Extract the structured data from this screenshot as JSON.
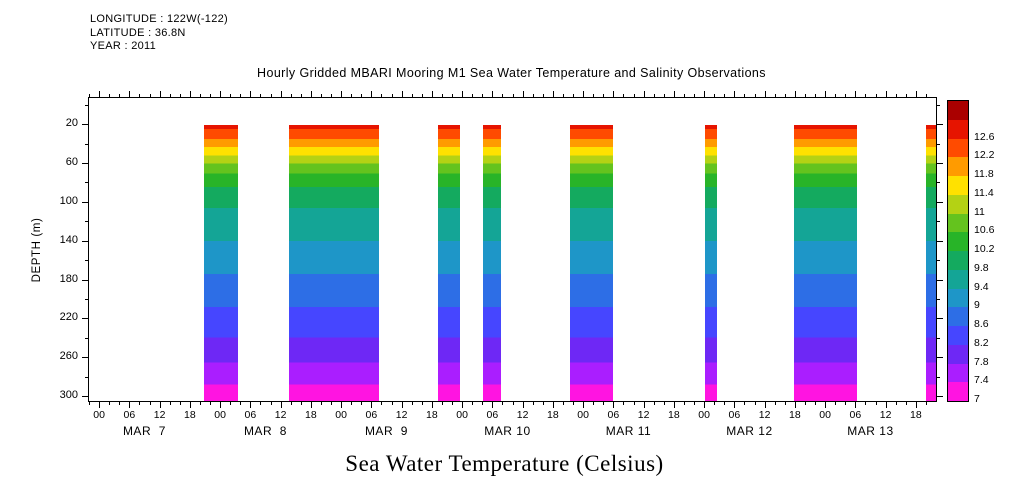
{
  "header": {
    "longitude": "LONGITUDE : 122W(-122)",
    "latitude": "LATITUDE : 36.8N",
    "year": "YEAR : 2011"
  },
  "title": "Hourly Gridded MBARI Mooring M1 Sea Water Temperature and Salinity Observations",
  "bottom_title": "Sea Water Temperature (Celsius)",
  "chart_data": {
    "type": "heatmap",
    "title": "Hourly Gridded MBARI Mooring M1 Sea Water Temperature and Salinity Observations",
    "ylabel": "DEPTH (m)",
    "xlabel": "Sea Water Temperature (Celsius)",
    "y_range": [
      -8,
      304
    ],
    "y_major_ticks": [
      20,
      60,
      100,
      140,
      180,
      220,
      260,
      300
    ],
    "y_minor_ticks": [
      0,
      40,
      80,
      120,
      160,
      200,
      240,
      280
    ],
    "x_range_hours": [
      -2.2,
      165.8
    ],
    "x_tick_labels": {
      "0": "00",
      "6": "06",
      "12": "12",
      "18": "18"
    },
    "minor_tick_step_hours": 2,
    "days": [
      "MAR  7",
      "MAR  8",
      "MAR  9",
      "MAR 10",
      "MAR 11",
      "MAR 12",
      "MAR 13"
    ],
    "data_top_depth_m": 20,
    "temperature_levels": [
      7,
      7.4,
      7.8,
      8.2,
      8.6,
      9,
      9.4,
      9.8,
      10.2,
      10.6,
      11,
      11.4,
      11.8,
      12.2,
      12.6
    ],
    "colorbar_labels": [
      "7",
      "7.4",
      "7.8",
      "8.2",
      "8.6",
      "9",
      "9.4",
      "9.8",
      "10.2",
      "10.6",
      "11",
      "11.4",
      "11.8",
      "12.2",
      "12.6"
    ],
    "colorbar_colors": [
      "#ff14e1",
      "#aa1eff",
      "#6e28f5",
      "#4646ff",
      "#2d6ee6",
      "#1e96c8",
      "#14a596",
      "#14aa5f",
      "#28b428",
      "#64c31e",
      "#b4d214",
      "#ffe100",
      "#ff9b00",
      "#ff4b00",
      "#e61400",
      "#aa0000"
    ],
    "bands_hours": [
      [
        20.6,
        27.4
      ],
      [
        37.5,
        55.3
      ],
      [
        67.0,
        71.4
      ],
      [
        76.0,
        79.5
      ],
      [
        93.2,
        101.7
      ],
      [
        120.0,
        122.4
      ],
      [
        137.6,
        150.1
      ],
      [
        163.8,
        165.8
      ]
    ],
    "depth_profile": [
      {
        "to": 0.015,
        "color": "#e61400"
      },
      {
        "to": 0.05,
        "color": "#ff4b00"
      },
      {
        "to": 0.08,
        "color": "#ff9b00"
      },
      {
        "to": 0.11,
        "color": "#ffe100"
      },
      {
        "to": 0.14,
        "color": "#b4d214"
      },
      {
        "to": 0.175,
        "color": "#64c31e"
      },
      {
        "to": 0.225,
        "color": "#28b428"
      },
      {
        "to": 0.3,
        "color": "#14aa5f"
      },
      {
        "to": 0.42,
        "color": "#14a596"
      },
      {
        "to": 0.54,
        "color": "#1e96c8"
      },
      {
        "to": 0.66,
        "color": "#2d6ee6"
      },
      {
        "to": 0.77,
        "color": "#4646ff"
      },
      {
        "to": 0.86,
        "color": "#6e28f5"
      },
      {
        "to": 0.94,
        "color": "#aa1eff"
      },
      {
        "to": 1.0,
        "color": "#ff14e1"
      }
    ]
  }
}
